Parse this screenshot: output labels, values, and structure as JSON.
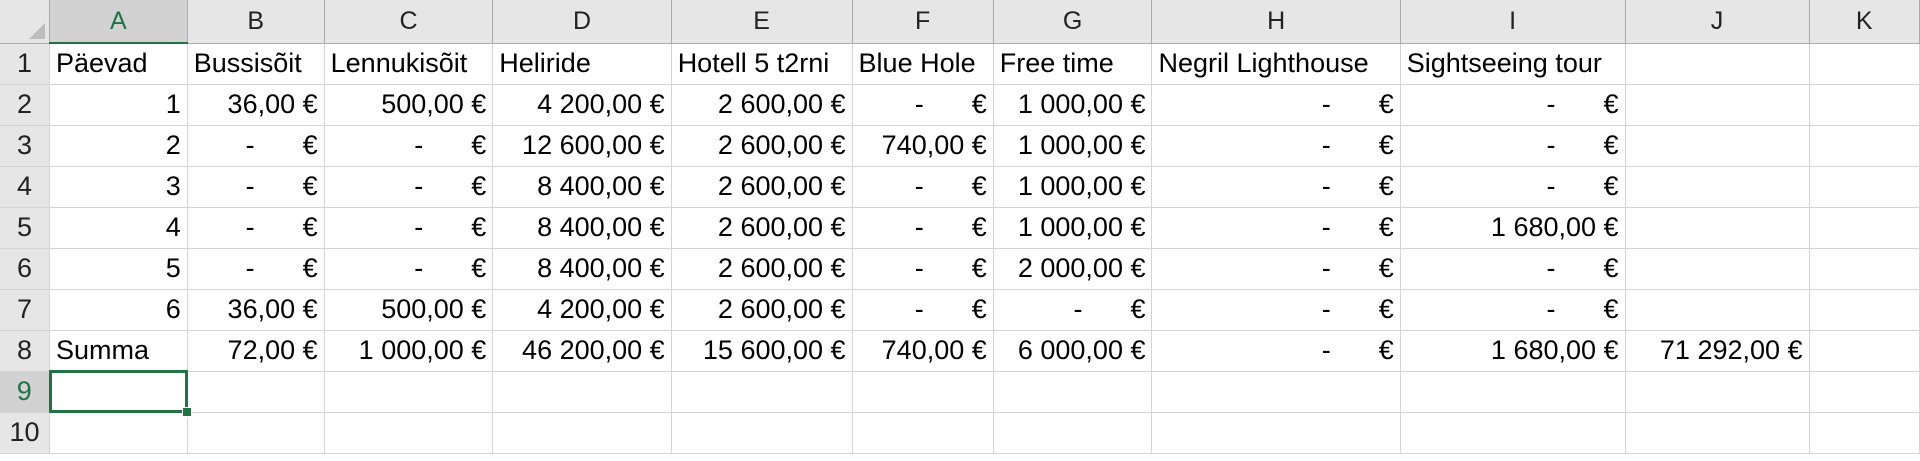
{
  "columns": [
    "A",
    "B",
    "C",
    "D",
    "E",
    "F",
    "G",
    "H",
    "I",
    "J",
    "K"
  ],
  "selected_column": "A",
  "selected_row": "9",
  "currency_symbol": "€",
  "dash": "-",
  "rows": [
    {
      "num": "1",
      "cells": [
        "Päevad",
        "Bussisõit",
        "Lennukisõit",
        "Heliride",
        "Hotell 5 t2rni",
        "Blue Hole",
        "Free time",
        "Negril Lighthouse",
        "Sightseeing tour",
        "",
        ""
      ]
    },
    {
      "num": "2",
      "cells": [
        "1",
        "36,00 €",
        "500,00 €",
        "4 200,00 €",
        "2 600,00 €",
        "-",
        "1 000,00 €",
        "-",
        "-",
        "",
        ""
      ]
    },
    {
      "num": "3",
      "cells": [
        "2",
        "-",
        "-",
        "12 600,00 €",
        "2 600,00 €",
        "740,00 €",
        "1 000,00 €",
        "-",
        "-",
        "",
        ""
      ]
    },
    {
      "num": "4",
      "cells": [
        "3",
        "-",
        "-",
        "8 400,00 €",
        "2 600,00 €",
        "-",
        "1 000,00 €",
        "-",
        "-",
        "",
        ""
      ]
    },
    {
      "num": "5",
      "cells": [
        "4",
        "-",
        "-",
        "8 400,00 €",
        "2 600,00 €",
        "-",
        "1 000,00 €",
        "-",
        "1 680,00 €",
        "",
        ""
      ]
    },
    {
      "num": "6",
      "cells": [
        "5",
        "-",
        "-",
        "8 400,00 €",
        "2 600,00 €",
        "-",
        "2 000,00 €",
        "-",
        "-",
        "",
        ""
      ]
    },
    {
      "num": "7",
      "cells": [
        "6",
        "36,00 €",
        "500,00 €",
        "4 200,00 €",
        "2 600,00 €",
        "-",
        "-",
        "-",
        "-",
        "",
        ""
      ]
    },
    {
      "num": "8",
      "cells": [
        "Summa",
        "72,00 €",
        "1 000,00 €",
        "46 200,00 €",
        "15 600,00 €",
        "740,00 €",
        "6 000,00 €",
        "-",
        "1 680,00 €",
        "71 292,00 €",
        ""
      ]
    },
    {
      "num": "9",
      "cells": [
        "",
        "",
        "",
        "",
        "",
        "",
        "",
        "",
        "",
        "",
        ""
      ]
    },
    {
      "num": "10",
      "cells": [
        "",
        "",
        "",
        "",
        "",
        "",
        "",
        "",
        "",
        "",
        ""
      ]
    }
  ]
}
